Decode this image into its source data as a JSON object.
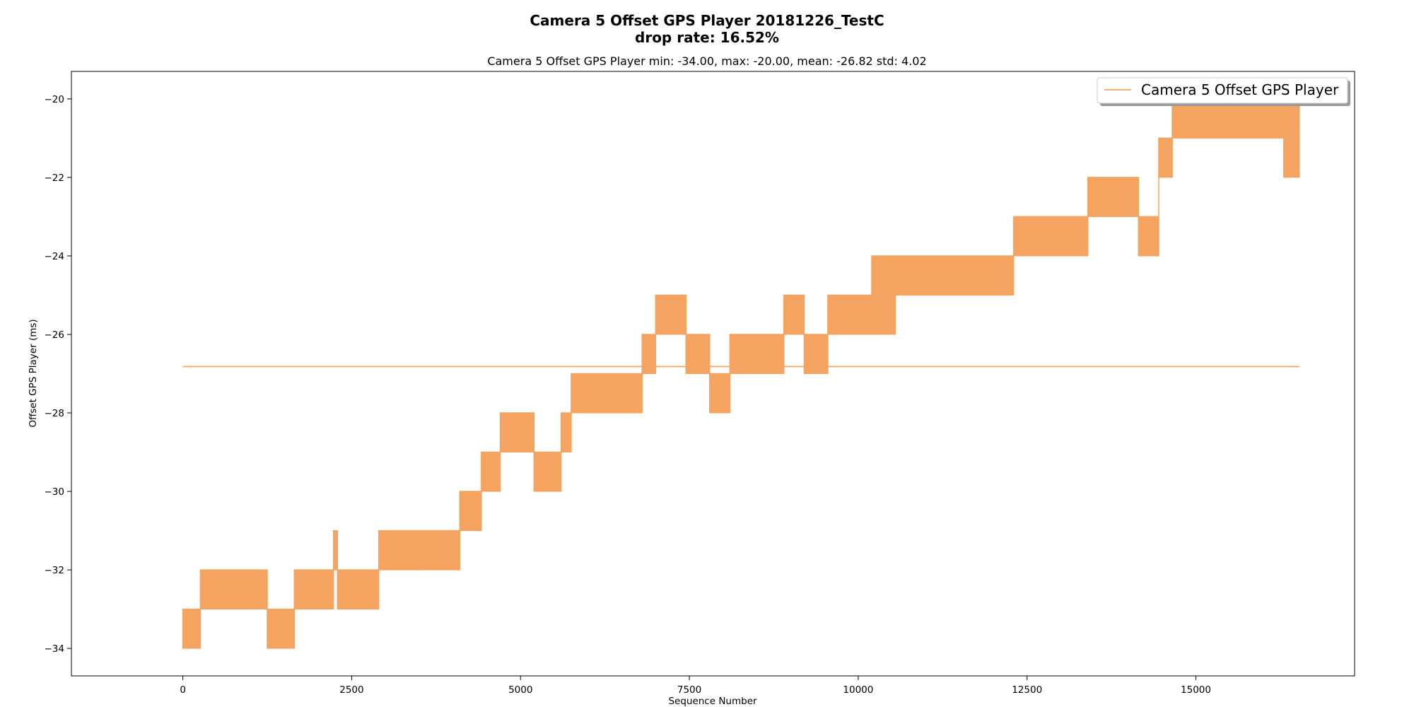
{
  "chart_data": {
    "type": "line",
    "title": "Camera 5 Offset GPS Player 20181226_TestC",
    "title_line2": "drop rate: 16.52%",
    "subtitle": "Camera 5 Offset GPS Player min: -34.00, max: -20.00, mean: -26.82 std: 4.02",
    "xlabel": "Sequence Number",
    "ylabel": "Offset GPS Player (ms)",
    "xlim": [
      -1650,
      17350
    ],
    "ylim": [
      -34.7,
      -19.3
    ],
    "xticks": [
      0,
      2500,
      5000,
      7500,
      10000,
      12500,
      15000
    ],
    "yticks": [
      -20,
      -22,
      -24,
      -26,
      -28,
      -30,
      -32,
      -34
    ],
    "grid": false,
    "legend_position": "upper right",
    "color": "#f4a460",
    "series": [
      {
        "name": "Camera 5 Offset GPS Player",
        "oscillation_bands": [
          {
            "x0": 0,
            "x1": 260,
            "lo": -34,
            "hi": -33
          },
          {
            "x0": 260,
            "x1": 1250,
            "lo": -33,
            "hi": -32
          },
          {
            "x0": 1250,
            "x1": 1650,
            "lo": -34,
            "hi": -33
          },
          {
            "x0": 1650,
            "x1": 2230,
            "lo": -33,
            "hi": -32
          },
          {
            "x0": 2230,
            "x1": 2290,
            "lo": -32,
            "hi": -31
          },
          {
            "x0": 2290,
            "x1": 2900,
            "lo": -33,
            "hi": -32
          },
          {
            "x0": 2900,
            "x1": 3550,
            "lo": -32,
            "hi": -31
          },
          {
            "x0": 3550,
            "x1": 4100,
            "lo": -32,
            "hi": -31
          },
          {
            "x0": 4100,
            "x1": 4420,
            "lo": -31,
            "hi": -30
          },
          {
            "x0": 4420,
            "x1": 4700,
            "lo": -30,
            "hi": -29
          },
          {
            "x0": 4700,
            "x1": 5200,
            "lo": -29,
            "hi": -28
          },
          {
            "x0": 5200,
            "x1": 5600,
            "lo": -30,
            "hi": -29
          },
          {
            "x0": 5600,
            "x1": 5750,
            "lo": -29,
            "hi": -28
          },
          {
            "x0": 5750,
            "x1": 6800,
            "lo": -28,
            "hi": -27
          },
          {
            "x0": 6800,
            "x1": 7000,
            "lo": -27,
            "hi": -26
          },
          {
            "x0": 7000,
            "x1": 7450,
            "lo": -26,
            "hi": -25
          },
          {
            "x0": 7450,
            "x1": 7800,
            "lo": -27,
            "hi": -26
          },
          {
            "x0": 7800,
            "x1": 8100,
            "lo": -28,
            "hi": -27
          },
          {
            "x0": 8100,
            "x1": 8900,
            "lo": -27,
            "hi": -26
          },
          {
            "x0": 8900,
            "x1": 9200,
            "lo": -26,
            "hi": -25
          },
          {
            "x0": 9200,
            "x1": 9550,
            "lo": -27,
            "hi": -26
          },
          {
            "x0": 9550,
            "x1": 10200,
            "lo": -26,
            "hi": -25
          },
          {
            "x0": 10200,
            "x1": 10550,
            "lo": -26,
            "hi": -24
          },
          {
            "x0": 10550,
            "x1": 12300,
            "lo": -25,
            "hi": -24
          },
          {
            "x0": 12300,
            "x1": 13400,
            "lo": -24,
            "hi": -23
          },
          {
            "x0": 13400,
            "x1": 14150,
            "lo": -23,
            "hi": -22
          },
          {
            "x0": 14150,
            "x1": 14450,
            "lo": -24,
            "hi": -23
          },
          {
            "x0": 14450,
            "x1": 14650,
            "lo": -22,
            "hi": -21
          },
          {
            "x0": 14650,
            "x1": 16530,
            "lo": -21,
            "hi": -20
          },
          {
            "x0": 16300,
            "x1": 16530,
            "lo": -22,
            "hi": -21
          }
        ],
        "mean_line": {
          "x0": 0,
          "x1": 16530,
          "y": -26.82
        }
      }
    ]
  }
}
